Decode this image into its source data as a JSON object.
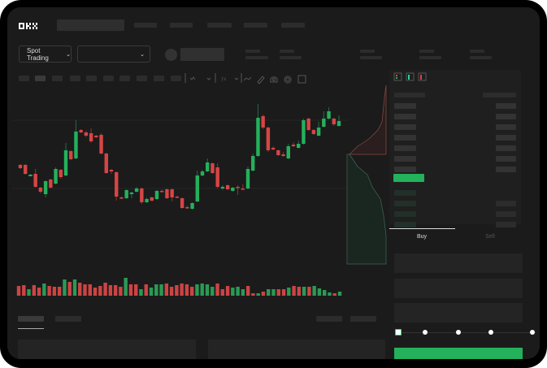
{
  "header": {
    "logo": "OKX",
    "market_selector": "Spot Trading"
  },
  "colors": {
    "up": "#23b15b",
    "down": "#d64545",
    "background": "#1b1b1b",
    "panel": "#1f1f1f"
  },
  "trade_panel": {
    "tabs": [
      "Buy",
      "Sell"
    ],
    "active_tab": "Buy",
    "slider_level": 0
  },
  "icons": [
    "orderbook-both-icon",
    "orderbook-bids-icon",
    "orderbook-asks-icon",
    "indicator-icon",
    "draw-line-icon",
    "ruler-icon",
    "camera-icon",
    "settings-icon",
    "fullscreen-icon",
    "chevron-down-icon"
  ],
  "chart_data": {
    "type": "candlestick",
    "candles": [
      [
        97,
        93,
        98,
        92
      ],
      [
        97,
        86,
        98,
        85
      ],
      [
        83,
        85,
        86,
        83
      ],
      [
        86,
        70,
        92,
        69
      ],
      [
        69,
        64,
        70,
        62
      ],
      [
        61,
        77,
        78,
        57
      ],
      [
        79,
        69,
        80,
        68
      ],
      [
        74,
        92,
        94,
        73
      ],
      [
        91,
        82,
        92,
        80
      ],
      [
        84,
        115,
        124,
        83
      ],
      [
        114,
        104,
        115,
        103
      ],
      [
        105,
        138,
        152,
        104
      ],
      [
        140,
        137,
        141,
        136
      ],
      [
        137,
        133,
        139,
        131
      ],
      [
        136,
        126,
        142,
        124
      ],
      [
        133,
        131,
        134,
        130
      ],
      [
        134,
        111,
        136,
        110
      ],
      [
        111,
        87,
        112,
        86
      ],
      [
        91,
        89,
        92,
        86
      ],
      [
        88,
        58,
        89,
        53
      ],
      [
        57,
        56,
        58,
        55
      ],
      [
        56,
        66,
        67,
        55
      ],
      [
        61,
        63,
        64,
        56
      ],
      [
        64,
        68,
        70,
        63
      ],
      [
        68,
        51,
        69,
        49
      ],
      [
        51,
        55,
        57,
        50
      ],
      [
        57,
        53,
        58,
        52
      ],
      [
        55,
        65,
        66,
        54
      ],
      [
        65,
        64,
        67,
        63
      ],
      [
        67,
        56,
        68,
        55
      ],
      [
        67,
        57,
        68,
        52
      ],
      [
        58,
        57,
        59,
        56
      ],
      [
        56,
        44,
        57,
        43
      ],
      [
        45,
        44,
        47,
        43
      ],
      [
        43,
        50,
        51,
        42
      ],
      [
        52,
        84,
        90,
        51
      ],
      [
        84,
        89,
        91,
        83
      ],
      [
        89,
        100,
        105,
        88
      ],
      [
        99,
        87,
        100,
        86
      ],
      [
        94,
        70,
        99,
        68
      ],
      [
        68,
        70,
        72,
        66
      ],
      [
        72,
        67,
        73,
        66
      ],
      [
        65,
        69,
        70,
        64
      ],
      [
        70,
        69,
        72,
        60
      ],
      [
        68,
        67,
        73,
        66
      ],
      [
        68,
        92,
        95,
        67
      ],
      [
        90,
        108,
        111,
        89
      ],
      [
        108,
        155,
        172,
        107
      ],
      [
        157,
        143,
        159,
        141
      ],
      [
        143,
        115,
        144,
        113
      ],
      [
        118,
        116,
        120,
        115
      ],
      [
        115,
        109,
        116,
        108
      ],
      [
        110,
        108,
        113,
        107
      ],
      [
        105,
        120,
        123,
        104
      ],
      [
        122,
        120,
        125,
        119
      ],
      [
        118,
        123,
        127,
        117
      ],
      [
        123,
        152,
        154,
        122
      ],
      [
        154,
        140,
        155,
        139
      ],
      [
        140,
        135,
        141,
        134
      ],
      [
        133,
        143,
        150,
        132
      ],
      [
        144,
        154,
        163,
        143
      ],
      [
        154,
        163,
        168,
        153
      ],
      [
        154,
        147,
        155,
        145
      ],
      [
        145,
        151,
        158,
        144
      ]
    ],
    "volume": [
      12,
      13,
      8,
      13,
      10,
      15,
      12,
      11,
      11,
      20,
      17,
      20,
      16,
      14,
      14,
      10,
      12,
      16,
      13,
      13,
      11,
      22,
      14,
      14,
      8,
      14,
      10,
      14,
      14,
      15,
      11,
      13,
      15,
      14,
      11,
      14,
      15,
      14,
      11,
      15,
      8,
      12,
      10,
      11,
      8,
      12,
      3,
      3,
      5,
      8,
      8,
      8,
      8,
      10,
      12,
      11,
      11,
      11,
      12,
      9,
      7,
      4,
      3,
      5
    ],
    "volume_up": [
      0,
      0,
      1,
      0,
      0,
      1,
      0,
      0,
      0,
      1,
      0,
      1,
      0,
      0,
      0,
      0,
      0,
      0,
      0,
      0,
      0,
      1,
      0,
      0,
      1,
      0,
      1,
      1,
      1,
      0,
      0,
      0,
      0,
      0,
      0,
      1,
      1,
      1,
      1,
      0,
      0,
      0,
      1,
      1,
      1,
      0,
      0,
      1,
      0,
      1,
      1,
      0,
      0,
      1,
      0,
      0,
      1,
      0,
      1,
      1,
      1,
      1,
      0,
      1
    ]
  }
}
